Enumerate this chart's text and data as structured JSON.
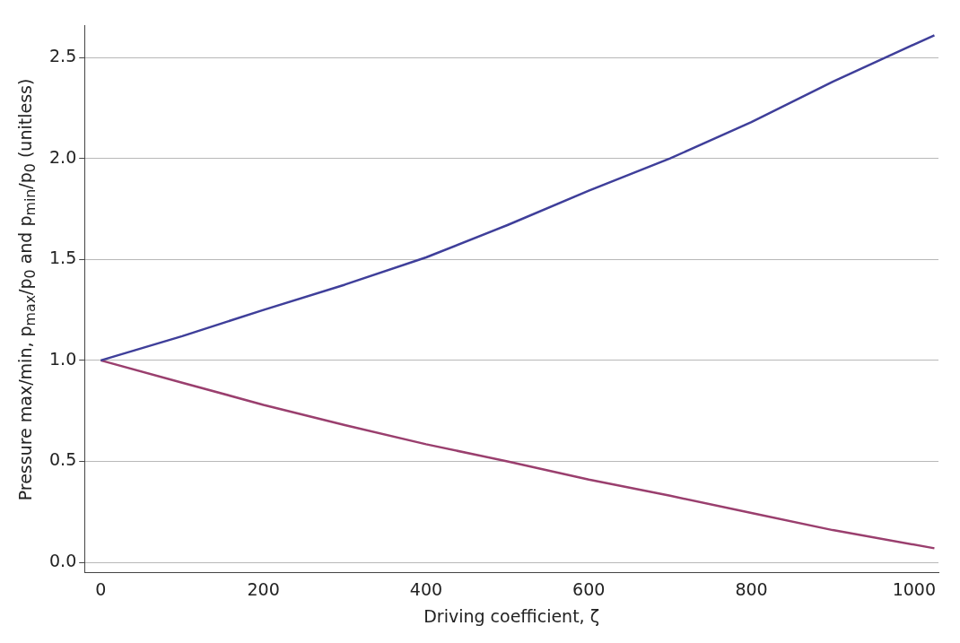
{
  "chart_data": {
    "type": "line",
    "xlabel": "Driving coefficient, ζ",
    "ylabel": "Pressure max/min, p$_{max}$/p$_{0}$ and p$_{min}$/p$_{0}$ (unitless)",
    "series": [
      {
        "color": "#3f3f9a",
        "x": [
          0,
          100,
          200,
          300,
          400,
          500,
          600,
          700,
          800,
          900,
          1025
        ],
        "values": [
          1,
          1.12,
          1.25,
          1.375,
          1.51,
          1.67,
          1.84,
          2.0,
          2.18,
          2.38,
          2.61
        ]
      },
      {
        "color": "#9a3f6e",
        "x": [
          0,
          100,
          200,
          300,
          400,
          500,
          600,
          700,
          800,
          900,
          1025
        ],
        "values": [
          1,
          0.89,
          0.78,
          0.68,
          0.585,
          0.5,
          0.41,
          0.33,
          0.245,
          0.16,
          0.07
        ]
      }
    ],
    "xlim": [
      -20,
      1030
    ],
    "ylim": [
      -0.05,
      2.66
    ],
    "xticks": [
      0,
      200,
      400,
      600,
      800,
      1000
    ],
    "yticks": [
      {
        "value": 0,
        "label": "0.0"
      },
      0.5,
      {
        "value": 1,
        "label": "1.0"
      },
      1.5,
      {
        "value": 2,
        "label": "2.0"
      },
      2.5
    ],
    "grid": "y",
    "legend": false,
    "line_style": "solid",
    "marker": "none"
  }
}
